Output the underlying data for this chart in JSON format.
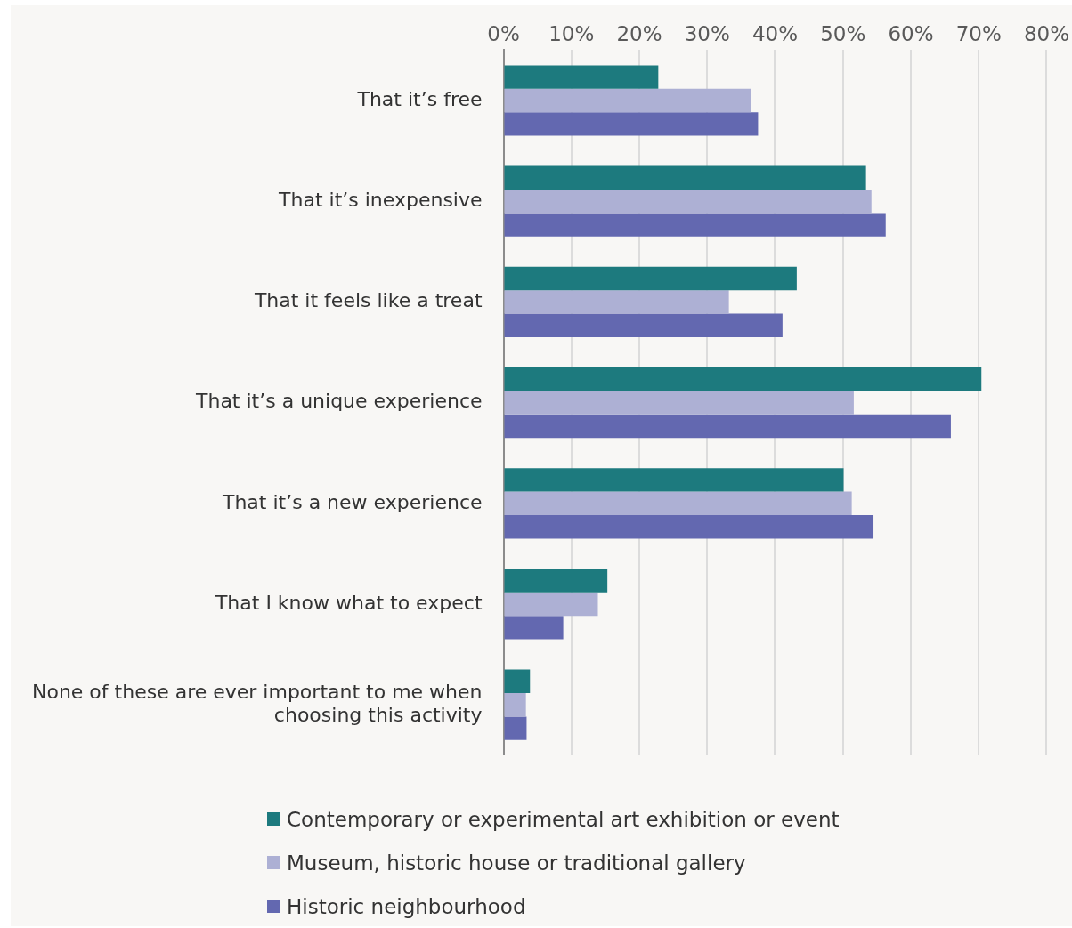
{
  "chart_data": {
    "type": "bar",
    "orientation": "horizontal",
    "categories": [
      "That it’s free",
      "That it’s inexpensive",
      "That it feels like a treat",
      "That it’s a unique experience",
      "That it’s a new experience",
      "That I know what to expect",
      "None of these are ever important to me when choosing this activity"
    ],
    "series": [
      {
        "name": "Contemporary or experimental art exhibition or event",
        "color": "#1d7a7e",
        "values": [
          22.8,
          53.4,
          43.2,
          70.4,
          50.1,
          15.3,
          3.9
        ]
      },
      {
        "name": "Museum, historic house or traditional gallery",
        "color": "#adb0d4",
        "values": [
          36.4,
          54.2,
          33.2,
          51.6,
          51.3,
          13.9,
          3.3
        ]
      },
      {
        "name": "Historic neighbourhood",
        "color": "#6368b0",
        "values": [
          37.5,
          56.3,
          41.1,
          65.9,
          54.5,
          8.8,
          3.4
        ]
      }
    ],
    "xlim": [
      0,
      80
    ],
    "xticks": [
      {
        "value": 0,
        "label": "0%"
      },
      {
        "value": 10,
        "label": "10%"
      },
      {
        "value": 20,
        "label": "20%"
      },
      {
        "value": 30,
        "label": "30%"
      },
      {
        "value": 40,
        "label": "40%"
      },
      {
        "value": 50,
        "label": "50%"
      },
      {
        "value": 60,
        "label": "60%"
      },
      {
        "value": 70,
        "label": "70%"
      },
      {
        "value": 80,
        "label": "80%"
      }
    ],
    "grid": "x",
    "legend": "bottom"
  }
}
